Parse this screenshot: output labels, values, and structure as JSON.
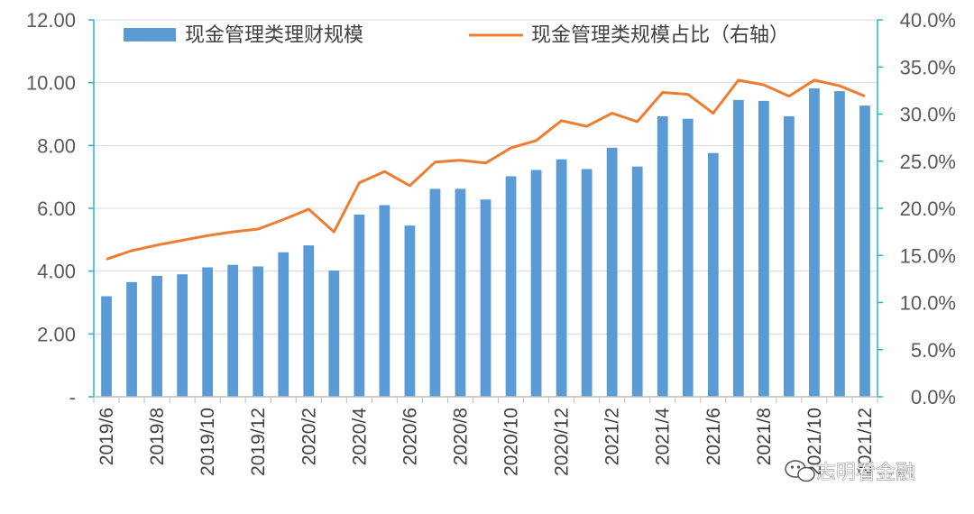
{
  "chart_data": {
    "type": "bar+line",
    "categories": [
      "2019/6",
      "2019/7",
      "2019/8",
      "2019/9",
      "2019/10",
      "2019/11",
      "2019/12",
      "2020/1",
      "2020/2",
      "2020/3",
      "2020/4",
      "2020/5",
      "2020/6",
      "2020/7",
      "2020/8",
      "2020/9",
      "2020/10",
      "2020/11",
      "2020/12",
      "2021/1",
      "2021/2",
      "2021/3",
      "2021/4",
      "2021/5",
      "2021/6",
      "2021/7",
      "2021/8",
      "2021/9",
      "2021/10",
      "2021/11",
      "2021/12"
    ],
    "x_tick_labels": [
      "2019/6",
      "2019/8",
      "2019/10",
      "2019/12",
      "2020/2",
      "2020/4",
      "2020/6",
      "2020/8",
      "2020/10",
      "2020/12",
      "2021/2",
      "2021/4",
      "2021/6",
      "2021/8",
      "2021/10",
      "2021/12"
    ],
    "series": [
      {
        "name": "现金管理类理财规模",
        "type": "bar",
        "axis": "left",
        "color": "#5b9bd5",
        "values": [
          3.2,
          3.65,
          3.85,
          3.9,
          4.12,
          4.2,
          4.15,
          4.6,
          4.82,
          4.02,
          5.8,
          6.1,
          5.45,
          6.62,
          6.62,
          6.28,
          7.02,
          7.22,
          7.56,
          7.25,
          7.93,
          7.33,
          8.93,
          8.85,
          7.76,
          9.45,
          9.42,
          8.93,
          9.82,
          9.73,
          9.27
        ]
      },
      {
        "name": "现金管理类规模占比（右轴）",
        "type": "line",
        "axis": "right",
        "color": "#ed7d31",
        "values": [
          14.6,
          15.5,
          16.1,
          16.6,
          17.1,
          17.5,
          17.8,
          18.8,
          19.9,
          17.5,
          22.7,
          23.9,
          22.4,
          24.9,
          25.1,
          24.8,
          26.4,
          27.2,
          29.3,
          28.7,
          30.1,
          29.2,
          32.3,
          32.1,
          30.1,
          33.6,
          33.1,
          31.9,
          33.6,
          33.0,
          31.9
        ]
      }
    ],
    "left_axis": {
      "min": 0,
      "max": 12,
      "tick_labels": [
        "-",
        "2.00",
        "4.00",
        "6.00",
        "8.00",
        "10.00",
        "12.00"
      ]
    },
    "right_axis": {
      "min": 0,
      "max": 40,
      "tick_labels": [
        "0.0%",
        "5.0%",
        "10.0%",
        "15.0%",
        "20.0%",
        "25.0%",
        "30.0%",
        "35.0%",
        "40.0%"
      ]
    },
    "grid": true,
    "legend_position": "top"
  },
  "watermark": "志明看金融"
}
